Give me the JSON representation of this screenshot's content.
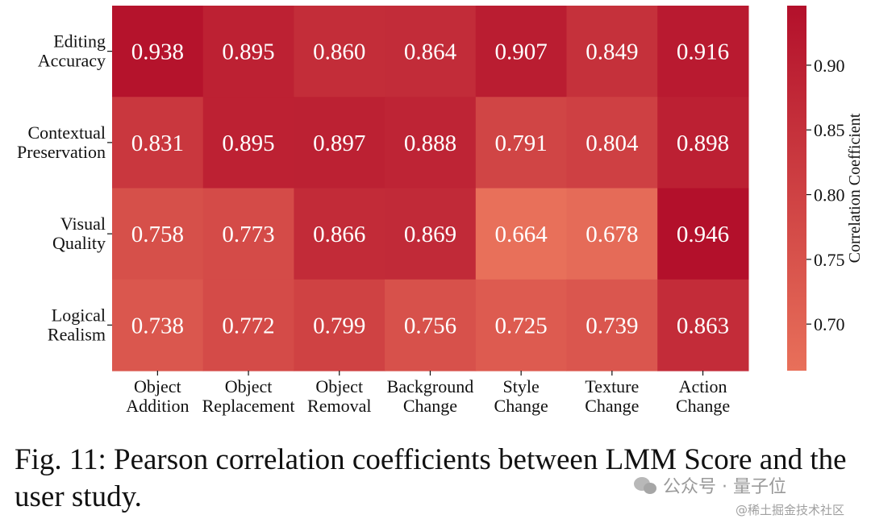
{
  "chart_data": {
    "type": "heatmap",
    "rows": [
      [
        "Editing",
        "Accuracy"
      ],
      [
        "Contextual",
        "Preservation"
      ],
      [
        "Visual",
        "Quality"
      ],
      [
        "Logical",
        "Realism"
      ]
    ],
    "columns": [
      [
        "Object",
        "Addition"
      ],
      [
        "Object",
        "Replacement"
      ],
      [
        "Object",
        "Removal"
      ],
      [
        "Background",
        "Change"
      ],
      [
        "Style",
        "Change"
      ],
      [
        "Texture",
        "Change"
      ],
      [
        "Action",
        "Change"
      ]
    ],
    "values": [
      [
        0.938,
        0.895,
        0.86,
        0.864,
        0.907,
        0.849,
        0.916
      ],
      [
        0.831,
        0.895,
        0.897,
        0.888,
        0.791,
        0.804,
        0.898
      ],
      [
        0.758,
        0.773,
        0.866,
        0.869,
        0.664,
        0.678,
        0.946
      ],
      [
        0.738,
        0.772,
        0.799,
        0.756,
        0.725,
        0.739,
        0.863
      ]
    ],
    "value_labels": [
      [
        "0.938",
        "0.895",
        "0.860",
        "0.864",
        "0.907",
        "0.849",
        "0.916"
      ],
      [
        "0.831",
        "0.895",
        "0.897",
        "0.888",
        "0.791",
        "0.804",
        "0.898"
      ],
      [
        "0.758",
        "0.773",
        "0.866",
        "0.869",
        "0.664",
        "0.678",
        "0.946"
      ],
      [
        "0.738",
        "0.772",
        "0.799",
        "0.756",
        "0.725",
        "0.739",
        "0.863"
      ]
    ],
    "colorbar": {
      "label": "Correlation Coefficient",
      "range": [
        0.664,
        0.946
      ],
      "ticks": [
        0.7,
        0.75,
        0.8,
        0.85,
        0.9
      ],
      "tick_labels": [
        "0.70",
        "0.75",
        "0.80",
        "0.85",
        "0.90"
      ],
      "colors": {
        "low": "#e8705a",
        "high": "#b3102b"
      }
    }
  },
  "caption": "Fig. 11: Pearson correlation coefficients between LMM Score and the user study.",
  "watermark": {
    "main": "公众号 · 量子位",
    "sub": "@稀土掘金技术社区"
  }
}
